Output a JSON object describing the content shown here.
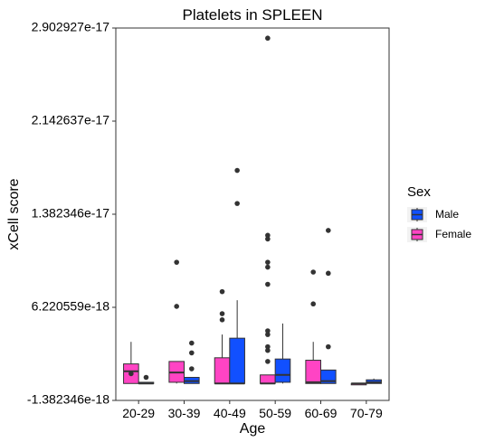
{
  "chart_data": {
    "type": "box",
    "title": "Platelets in SPLEEN",
    "xlabel": "Age",
    "ylabel": "xCell score",
    "categories": [
      "20-29",
      "30-39",
      "40-49",
      "50-59",
      "60-69",
      "70-79"
    ],
    "yticks": [
      "-1.382346e-18",
      "6.220559e-18",
      "1.382346e-17",
      "2.142637e-17",
      "2.902927e-17"
    ],
    "ylim": [
      -1.382346e-18,
      2.902927e-17
    ],
    "grid": false,
    "legend": {
      "title": "Sex",
      "position": "right",
      "entries": [
        {
          "label": "Male",
          "color": "#1150ff"
        },
        {
          "label": "Female",
          "color": "#ff44c4"
        }
      ]
    },
    "series": [
      {
        "name": "Female",
        "color": "#ff44c4",
        "boxes": [
          {
            "category": "20-29",
            "min": 0,
            "q1": 0,
            "median": 1e-18,
            "q3": 1.6e-18,
            "max": 3.4e-18,
            "outliers": [
              8e-19
            ]
          },
          {
            "category": "30-39",
            "min": 0,
            "q1": 1e-19,
            "median": 9e-19,
            "q3": 1.8e-18,
            "max": 1.8e-18,
            "outliers": [
              6.3e-18,
              9.9e-18
            ]
          },
          {
            "category": "40-49",
            "min": 0,
            "q1": 0,
            "median": 0,
            "q3": 2.1e-18,
            "max": 4e-18,
            "outliers": [
              5.2e-18,
              5.7e-18,
              7.5e-18
            ]
          },
          {
            "category": "50-59",
            "min": 0,
            "q1": 0,
            "median": 0,
            "q3": 7e-19,
            "max": 7e-19,
            "outliers": [
              1.8e-18,
              2.7e-18,
              3e-18,
              4e-18,
              4.3e-18,
              8.1e-18,
              9.5e-18,
              9.9e-18,
              1.18e-17,
              1.21e-17,
              2.82e-17
            ]
          },
          {
            "category": "60-69",
            "min": 0,
            "q1": 0,
            "median": 1e-19,
            "q3": 1.9e-18,
            "max": 3.4e-18,
            "outliers": [
              6.5e-18,
              9.1e-18
            ]
          },
          {
            "category": "70-79",
            "min": 0,
            "q1": 0,
            "median": 0,
            "q3": 0,
            "max": 0,
            "outliers": []
          }
        ]
      },
      {
        "name": "Male",
        "color": "#1150ff",
        "boxes": [
          {
            "category": "20-29",
            "min": 0,
            "q1": 0,
            "median": 0,
            "q3": 1e-19,
            "max": 1e-19,
            "outliers": [
              5e-19
            ]
          },
          {
            "category": "30-39",
            "min": 0,
            "q1": 0,
            "median": 2e-19,
            "q3": 5e-19,
            "max": 5e-19,
            "outliers": [
              1.2e-18,
              2.5e-18,
              3.3e-18
            ]
          },
          {
            "category": "40-49",
            "min": 0,
            "q1": 0,
            "median": 0,
            "q3": 3.7e-18,
            "max": 6.8e-18,
            "outliers": [
              1.47e-17,
              1.74e-17
            ]
          },
          {
            "category": "50-59",
            "min": 0,
            "q1": 1e-19,
            "median": 7e-19,
            "q3": 2e-18,
            "max": 4.9e-18,
            "outliers": []
          },
          {
            "category": "60-69",
            "min": 0,
            "q1": 0,
            "median": 2e-19,
            "q3": 1.1e-18,
            "max": 1.1e-18,
            "outliers": [
              3e-18,
              9e-18,
              1.25e-17
            ]
          },
          {
            "category": "70-79",
            "min": 0,
            "q1": 0,
            "median": 1e-19,
            "q3": 3e-19,
            "max": 4e-19,
            "outliers": []
          }
        ]
      }
    ]
  }
}
